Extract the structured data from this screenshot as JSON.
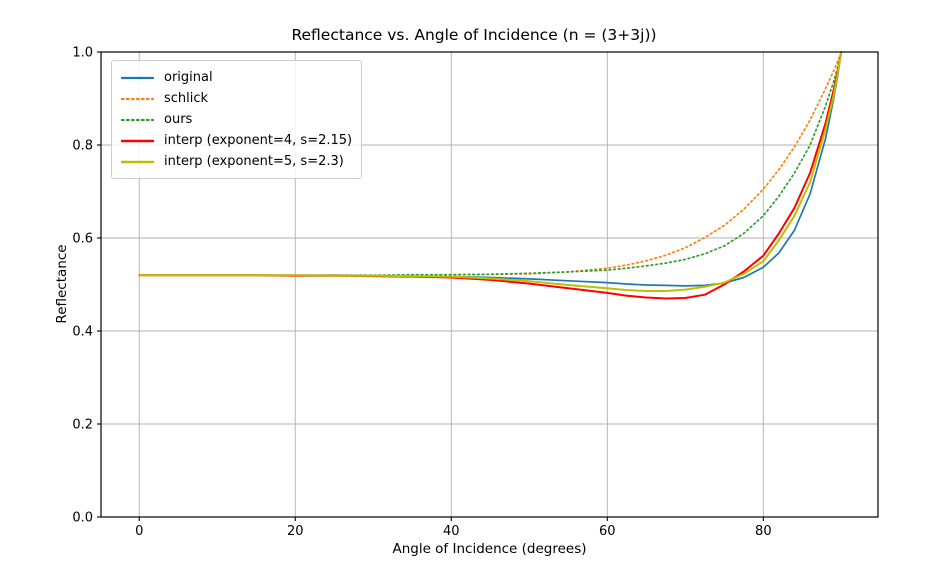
{
  "figure": {
    "title": "Reflectance vs. Angle of Incidence (n = (3+3j))",
    "xlabel": "Angle of Incidence (degrees)",
    "ylabel": "Reflectance"
  },
  "axes": {
    "x_tick_labels": [
      "0",
      "20",
      "40",
      "60",
      "80"
    ],
    "y_tick_labels": [
      "0.0",
      "0.2",
      "0.4",
      "0.6",
      "0.8",
      "1.0"
    ]
  },
  "colors": {
    "background": "#ffffff",
    "grid": "#b0b0b0",
    "spine": "#000000",
    "tick": "#000000",
    "legend_border": "#cccccc"
  },
  "chart_data": {
    "type": "line",
    "title": "Reflectance vs. Angle of Incidence (n = (3+3j))",
    "xlabel": "Angle of Incidence (degrees)",
    "ylabel": "Reflectance",
    "xlim": [
      -4.9,
      94.7
    ],
    "ylim": [
      0.0,
      1.0
    ],
    "x_ticks": [
      0,
      20,
      40,
      60,
      80
    ],
    "y_ticks": [
      0.0,
      0.2,
      0.4,
      0.6,
      0.8,
      1.0
    ],
    "grid": true,
    "legend_position": "upper left",
    "x": [
      0,
      5,
      10,
      15,
      20,
      25,
      30,
      35,
      40,
      45,
      50,
      55,
      60,
      62.5,
      65,
      67.5,
      70,
      72.5,
      75,
      77.5,
      80,
      82,
      84,
      86,
      88,
      89,
      89.5,
      90
    ],
    "series": [
      {
        "name": "original",
        "color": "#1f77b4",
        "style": "solid",
        "width": 1.7,
        "values": [
          0.52,
          0.52,
          0.52,
          0.52,
          0.52,
          0.52,
          0.519,
          0.518,
          0.517,
          0.515,
          0.512,
          0.508,
          0.504,
          0.501,
          0.499,
          0.498,
          0.497,
          0.498,
          0.503,
          0.515,
          0.537,
          0.568,
          0.617,
          0.695,
          0.815,
          0.898,
          0.945,
          1.0
        ]
      },
      {
        "name": "schlick",
        "color": "#ff7f0e",
        "style": "dotted",
        "width": 1.7,
        "values": [
          0.52,
          0.52,
          0.52,
          0.52,
          0.52,
          0.52,
          0.52,
          0.52,
          0.521,
          0.522,
          0.523,
          0.527,
          0.535,
          0.542,
          0.551,
          0.563,
          0.579,
          0.601,
          0.627,
          0.662,
          0.705,
          0.747,
          0.796,
          0.854,
          0.922,
          0.959,
          0.979,
          1.0
        ]
      },
      {
        "name": "ours",
        "color": "#2ca02c",
        "style": "dotted",
        "width": 1.7,
        "values": [
          0.52,
          0.52,
          0.52,
          0.52,
          0.52,
          0.52,
          0.52,
          0.521,
          0.521,
          0.522,
          0.524,
          0.527,
          0.531,
          0.535,
          0.54,
          0.546,
          0.554,
          0.566,
          0.583,
          0.61,
          0.648,
          0.69,
          0.74,
          0.8,
          0.885,
          0.935,
          0.965,
          1.0
        ]
      },
      {
        "name": "interp (exponent=4, s=2.15)",
        "color": "#ff0000",
        "style": "solid",
        "width": 2.0,
        "values": [
          0.52,
          0.52,
          0.52,
          0.52,
          0.519,
          0.519,
          0.518,
          0.517,
          0.515,
          0.51,
          0.502,
          0.492,
          0.482,
          0.476,
          0.472,
          0.47,
          0.471,
          0.478,
          0.5,
          0.528,
          0.562,
          0.61,
          0.665,
          0.74,
          0.848,
          0.917,
          0.955,
          1.0
        ]
      },
      {
        "name": "interp (exponent=5, s=2.3)",
        "color": "#bfbf00",
        "style": "solid",
        "width": 2.0,
        "values": [
          0.52,
          0.52,
          0.52,
          0.52,
          0.52,
          0.519,
          0.519,
          0.518,
          0.517,
          0.513,
          0.507,
          0.499,
          0.492,
          0.488,
          0.486,
          0.486,
          0.489,
          0.495,
          0.504,
          0.523,
          0.55,
          0.595,
          0.648,
          0.72,
          0.835,
          0.905,
          0.95,
          1.0
        ]
      }
    ]
  }
}
